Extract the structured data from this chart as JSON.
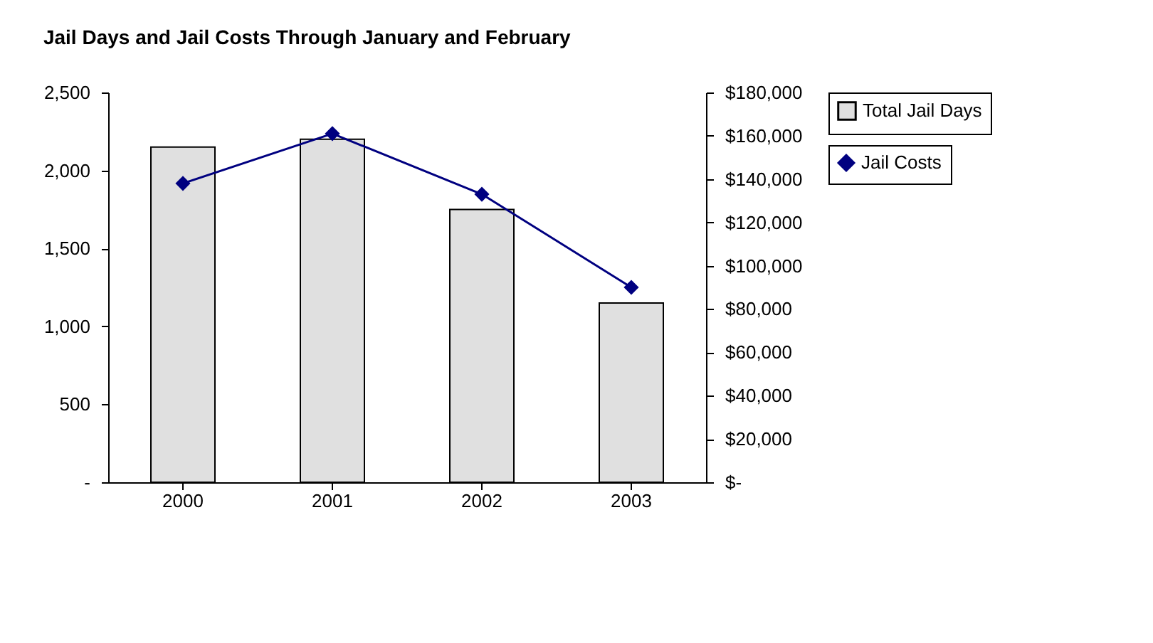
{
  "chart_data": {
    "type": "bar",
    "title": "Jail Days and Jail Costs Through January and February",
    "categories": [
      "2000",
      "2001",
      "2002",
      "2003"
    ],
    "series": [
      {
        "name": "Total Jail Days",
        "color": "#e0e0e0",
        "values": [
          2150,
          2200,
          1750,
          1150
        ]
      },
      {
        "name": "Jail Costs",
        "type": "line",
        "axis": "y2",
        "color": "#000080",
        "marker": "diamond",
        "values": [
          138000,
          161000,
          133000,
          90000
        ]
      }
    ],
    "ylim": [
      0,
      2500
    ],
    "yticks": [
      {
        "value": 0,
        "label": "-"
      },
      {
        "value": 500,
        "label": "500"
      },
      {
        "value": 1000,
        "label": "1,000"
      },
      {
        "value": 1500,
        "label": "1,500"
      },
      {
        "value": 2000,
        "label": "2,000"
      },
      {
        "value": 2500,
        "label": "2,500"
      }
    ],
    "y2lim": [
      0,
      180000
    ],
    "y2ticks": [
      {
        "value": 0,
        "label": "$-"
      },
      {
        "value": 20000,
        "label": "$20,000"
      },
      {
        "value": 40000,
        "label": "$40,000"
      },
      {
        "value": 60000,
        "label": "$60,000"
      },
      {
        "value": 80000,
        "label": "$80,000"
      },
      {
        "value": 100000,
        "label": "$100,000"
      },
      {
        "value": 120000,
        "label": "$120,000"
      },
      {
        "value": 140000,
        "label": "$140,000"
      },
      {
        "value": 160000,
        "label": "$160,000"
      },
      {
        "value": 180000,
        "label": "$180,000"
      }
    ],
    "grid": false,
    "legend": "right"
  }
}
